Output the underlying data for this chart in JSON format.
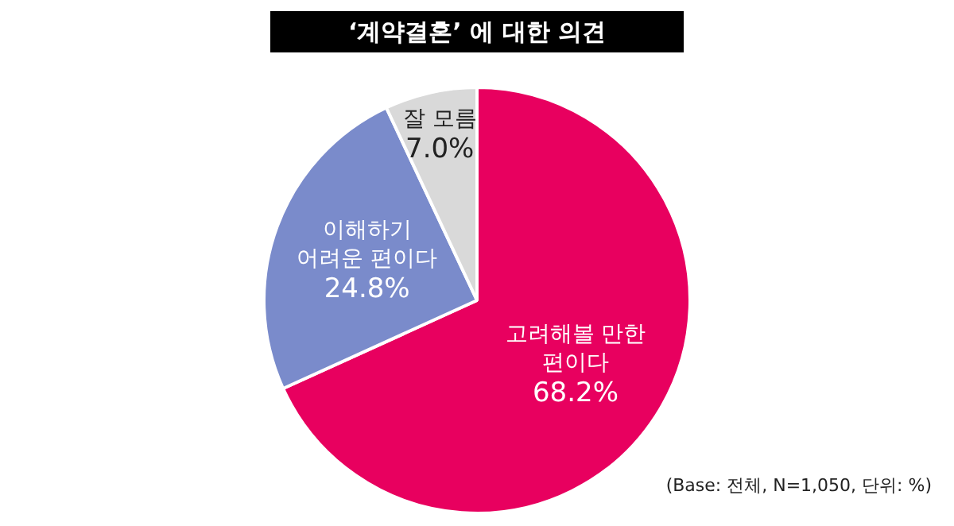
{
  "chart_data": {
    "type": "pie",
    "title": "‘계약결혼’ 에 대한 의견",
    "categories": [
      "고려해볼 만한 편이다",
      "이해하기 어려운 편이다",
      "잘 모름"
    ],
    "values": [
      68.2,
      24.8,
      7.0
    ],
    "colors": [
      "#e8005f",
      "#7a8bcb",
      "#d9d9d9"
    ],
    "value_labels": [
      "68.2%",
      "24.8%",
      "7.0%"
    ],
    "annotations": [
      "(Base: 전체, N=1,050, 단위: %)"
    ],
    "legend": false
  }
}
